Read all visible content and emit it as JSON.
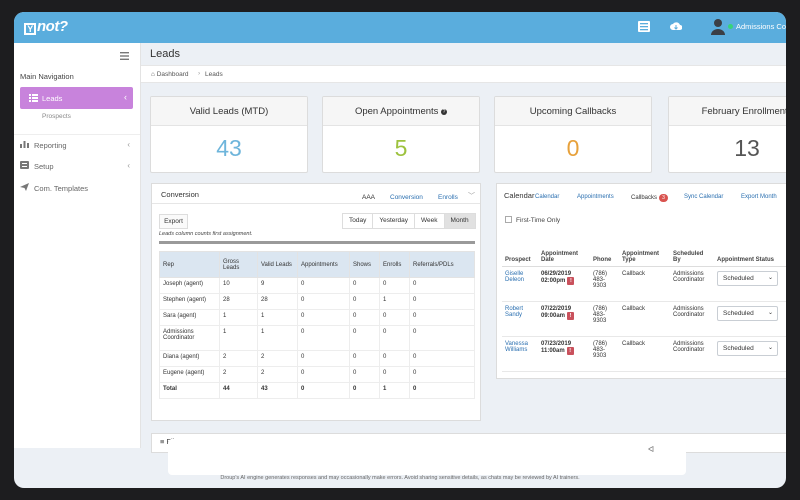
{
  "app": {
    "logo_text": "not?",
    "logo_mark": "Y",
    "user_name": "Admissions Coordinator"
  },
  "colors": {
    "topbar": "#5aaddd",
    "sidebar_active": "#c883dc",
    "valid_leads": "#6eb5db",
    "open_appointments": "#9dc23e",
    "upcoming_callbacks": "#e7a13b",
    "february_enrollments": "#555555",
    "link": "#2a6fb0"
  },
  "sidebar": {
    "section_title": "Main Navigation",
    "items": [
      {
        "label": "Leads",
        "icon": "list-icon",
        "active": true
      },
      {
        "label": "Reporting",
        "icon": "bar-chart-icon"
      },
      {
        "label": "Setup",
        "icon": "settings-icon"
      },
      {
        "label": "Com. Templates",
        "icon": "paper-plane-icon"
      }
    ],
    "sub_item": "Prospects"
  },
  "page": {
    "title": "Leads",
    "breadcrumb": [
      "Dashboard",
      "Leads"
    ]
  },
  "stats": [
    {
      "label": "Valid Leads (MTD)",
      "value": "43"
    },
    {
      "label": "Open Appointments",
      "value": "5"
    },
    {
      "label": "Upcoming Callbacks",
      "value": "0"
    },
    {
      "label": "February Enrollments",
      "value": "13"
    }
  ],
  "conversion": {
    "title": "Conversion",
    "tabs": [
      "AAA",
      "Conversion",
      "Enrolls"
    ],
    "export_label": "Export",
    "ranges": [
      "Today",
      "Yesterday",
      "Week",
      "Month"
    ],
    "active_range": "Month",
    "note": "Leads column counts first assignment.",
    "columns": [
      "Rep",
      "Gross Leads",
      "Valid Leads",
      "Appointments",
      "Shows",
      "Enrolls",
      "Referrals/PDLs"
    ],
    "rows": [
      [
        "Joseph (agent)",
        "10",
        "9",
        "0",
        "0",
        "0",
        "0"
      ],
      [
        "Stephen (agent)",
        "28",
        "28",
        "0",
        "0",
        "1",
        "0"
      ],
      [
        "Sara (agent)",
        "1",
        "1",
        "0",
        "0",
        "0",
        "0"
      ],
      [
        "Admissions Coordinator",
        "1",
        "1",
        "0",
        "0",
        "0",
        "0"
      ],
      [
        "Diana (agent)",
        "2",
        "2",
        "0",
        "0",
        "0",
        "0"
      ],
      [
        "Eugene (agent)",
        "2",
        "2",
        "0",
        "0",
        "0",
        "0"
      ],
      [
        "Total",
        "44",
        "43",
        "0",
        "0",
        "1",
        "0"
      ]
    ]
  },
  "calendar": {
    "title": "Calendar",
    "tabs": [
      "Calendar",
      "Appointments",
      "Callbacks",
      "Sync Calendar",
      "Export Month"
    ],
    "callbacks_badge": "3",
    "first_time_only": "First-Time Only",
    "columns": [
      "Prospect",
      "Appointment Date",
      "Phone",
      "Appointment Type",
      "Scheduled By",
      "Appointment Status"
    ],
    "rows": [
      {
        "prospect": "Giselle Deleon",
        "date": "06/29/2019",
        "time": "02:00pm",
        "phone": "(786) 483-9303",
        "type": "Callback",
        "scheduled_by": "Admissions Coordinator",
        "status": "Scheduled"
      },
      {
        "prospect": "Robert Sandy",
        "date": "07/22/2019",
        "time": "09:00am",
        "phone": "(786) 483-9303",
        "type": "Callback",
        "scheduled_by": "Admissions Coordinator",
        "status": "Scheduled"
      },
      {
        "prospect": "Vanessa Williams",
        "date": "07/23/2019",
        "time": "11:00am",
        "phone": "(786) 483-9303",
        "type": "Callback",
        "scheduled_by": "Admissions Coordinator",
        "status": "Scheduled"
      }
    ]
  },
  "filter": {
    "label": "Filter"
  },
  "footer": {
    "disclaimer": "Droup's AI engine generates responses and may occasionally make errors. Avoid sharing sensitive details, as chats may be reviewed by AI trainers."
  }
}
